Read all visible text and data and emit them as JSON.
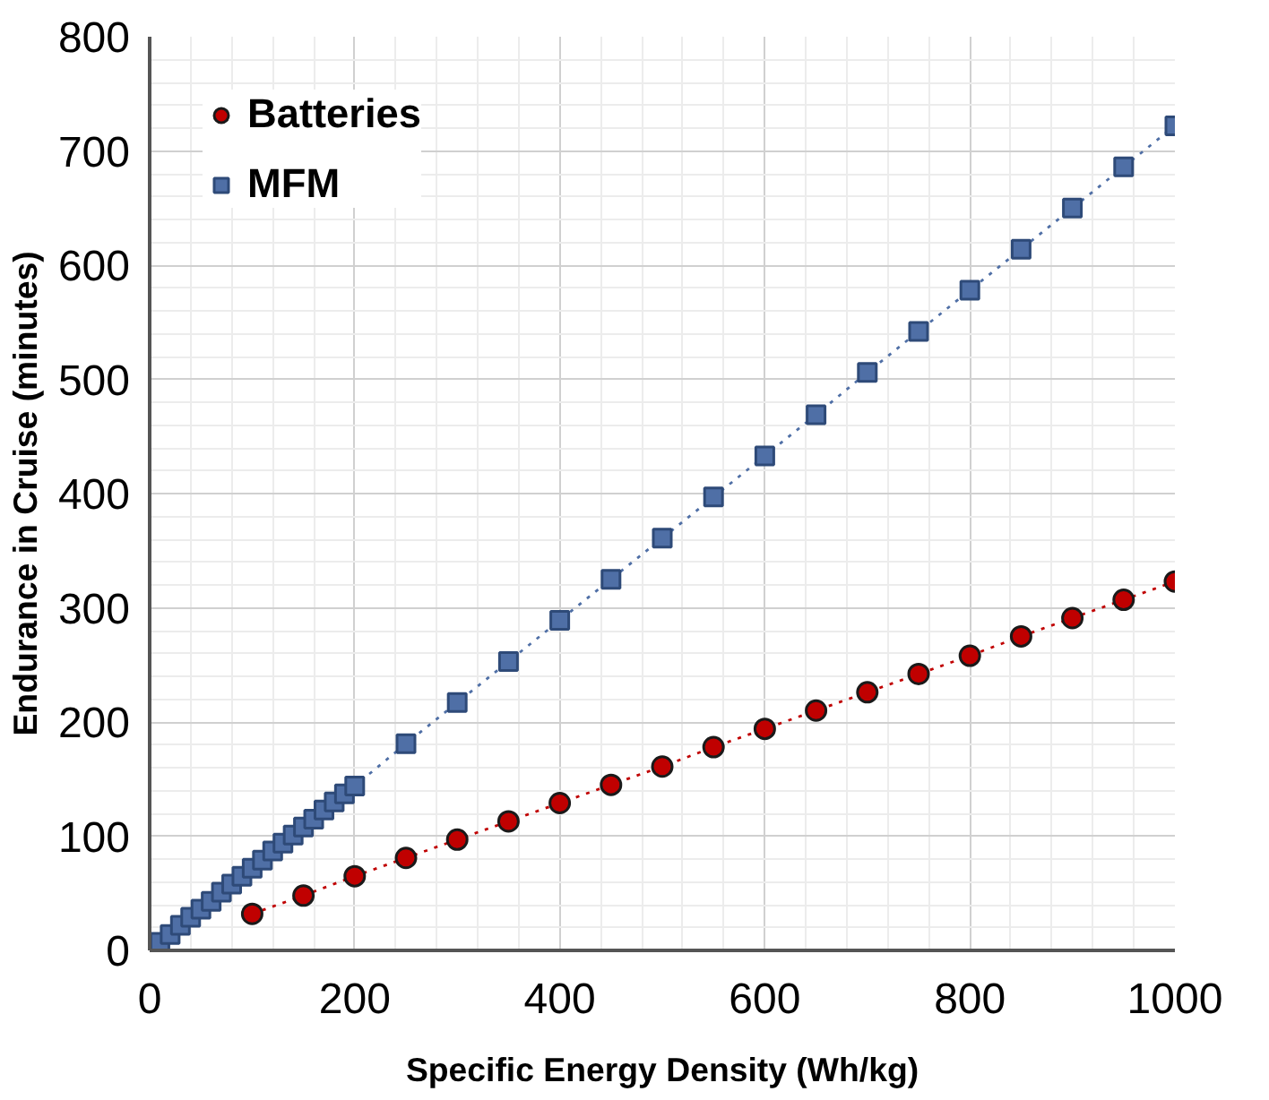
{
  "chart_data": {
    "type": "line",
    "xlabel": "Specific Energy Density (Wh/kg)",
    "ylabel": "Endurance in Cruise (minutes)",
    "xlim": [
      0,
      1000
    ],
    "ylim": [
      0,
      800
    ],
    "xticks": [
      0,
      200,
      400,
      600,
      800,
      1000
    ],
    "yticks": [
      0,
      100,
      200,
      300,
      400,
      500,
      600,
      700,
      800
    ],
    "grid": true,
    "legend": "top left",
    "line_style": "dotted",
    "series": [
      {
        "name": "Batteries",
        "color": "#c00000",
        "marker": "circle",
        "x": [
          100,
          150,
          200,
          250,
          300,
          350,
          400,
          450,
          500,
          550,
          600,
          650,
          700,
          750,
          800,
          850,
          900,
          950,
          1000
        ],
        "values": [
          32,
          48,
          65,
          81,
          97,
          113,
          129,
          145,
          161,
          178,
          194,
          210,
          226,
          242,
          258,
          275,
          291,
          307,
          323
        ]
      },
      {
        "name": "MFM",
        "color": "#4f6fa6",
        "marker": "square",
        "x": [
          10,
          20,
          30,
          40,
          50,
          60,
          70,
          80,
          90,
          100,
          110,
          120,
          130,
          140,
          150,
          160,
          170,
          180,
          190,
          200,
          250,
          300,
          350,
          400,
          450,
          500,
          550,
          600,
          650,
          700,
          750,
          800,
          850,
          900,
          950,
          1000
        ],
        "values": [
          7,
          14,
          22,
          29,
          36,
          43,
          51,
          58,
          65,
          72,
          79,
          87,
          94,
          101,
          108,
          115,
          123,
          130,
          137,
          144,
          181,
          217,
          253,
          289,
          325,
          361,
          397,
          433,
          469,
          506,
          542,
          578,
          614,
          650,
          686,
          722
        ]
      }
    ]
  }
}
